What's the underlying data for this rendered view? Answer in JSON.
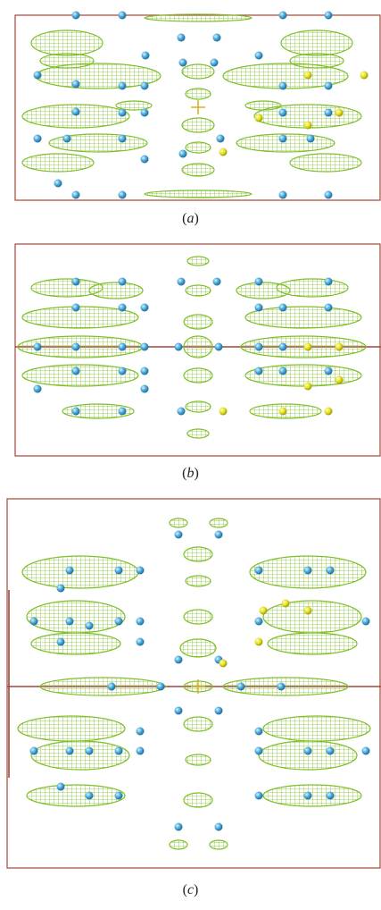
{
  "figure": {
    "panels": [
      {
        "id": "a",
        "caption_label": "a",
        "projection": "horizontal-axis-top",
        "colors": {
          "mesh": "#7fbf2a",
          "atom_blue": "#4aa8d8",
          "atom_yellow": "#e6e21c",
          "axis": "#a0463a"
        }
      },
      {
        "id": "b",
        "caption_label": "b",
        "projection": "horizontal-axis-middle",
        "colors": {
          "mesh": "#7fbf2a",
          "atom_blue": "#4aa8d8",
          "atom_yellow": "#e6e21c",
          "axis": "#a0463a"
        }
      },
      {
        "id": "c",
        "caption_label": "c",
        "projection": "horizontal-axis-middle-tall",
        "colors": {
          "mesh": "#7fbf2a",
          "atom_blue": "#4aa8d8",
          "atom_yellow": "#e6e21c",
          "axis": "#a0463a"
        }
      }
    ]
  }
}
